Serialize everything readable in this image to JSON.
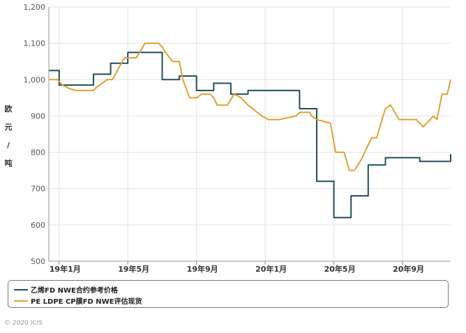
{
  "chart_data": {
    "type": "line",
    "ylabel": "欧元/吨",
    "ylim": [
      500,
      1200
    ],
    "yticks": [
      "500",
      "600",
      "700",
      "800",
      "900",
      "1,000",
      "1,100",
      "1,200"
    ],
    "ytick_values": [
      500,
      600,
      700,
      800,
      900,
      1000,
      1100,
      1200
    ],
    "xlim": [
      -0.6,
      22.8
    ],
    "xticks": [
      "19年1月",
      "19年5月",
      "19年9月",
      "20年1月",
      "20年5月",
      "20年9月"
    ],
    "xtick_values": [
      0,
      4,
      8,
      12,
      16,
      20
    ],
    "grid": true,
    "legend_position": "bottom",
    "series": [
      {
        "name": "乙烯FD NWE合约参考价格",
        "color": "#1f4e5a",
        "step": true,
        "x": [
          -0.6,
          0,
          2,
          3,
          4,
          5,
          6,
          7,
          8,
          9,
          10,
          11,
          12,
          13,
          14,
          15,
          16,
          17,
          18,
          19,
          20,
          21,
          22,
          22.8
        ],
        "values": [
          1025,
          985,
          1015,
          1045,
          1075,
          1075,
          1000,
          1010,
          970,
          990,
          960,
          970,
          970,
          970,
          920,
          720,
          620,
          680,
          765,
          785,
          785,
          775,
          775,
          795
        ]
      },
      {
        "name": "PE LDPE CP膜FD NWE评估现货",
        "color": "#e0a030",
        "step": false,
        "x": [
          -0.6,
          -0.1,
          0.2,
          0.6,
          1.0,
          2.0,
          2.2,
          2.8,
          3.1,
          3.8,
          4.0,
          4.5,
          5.0,
          5.5,
          5.8,
          6.0,
          6.2,
          6.6,
          7.0,
          7.2,
          7.6,
          8.0,
          8.3,
          8.8,
          9.0,
          9.2,
          9.6,
          9.8,
          10.2,
          10.6,
          11.0,
          11.8,
          12.2,
          12.6,
          12.8,
          13.8,
          14.0,
          14.3,
          14.6,
          14.7,
          15.0,
          15.8,
          16.1,
          16.6,
          16.9,
          17.2,
          17.6,
          18.0,
          18.2,
          18.5,
          18.8,
          19.0,
          19.3,
          19.8,
          20.2,
          20.8,
          21.2,
          21.8,
          22.0,
          22.3,
          22.6,
          22.8
        ],
        "values": [
          1000,
          1000,
          985,
          975,
          970,
          970,
          980,
          1000,
          1000,
          1060,
          1060,
          1060,
          1100,
          1100,
          1100,
          1090,
          1075,
          1050,
          1050,
          1000,
          950,
          950,
          960,
          960,
          950,
          930,
          930,
          930,
          960,
          950,
          930,
          900,
          890,
          890,
          890,
          900,
          910,
          910,
          910,
          900,
          890,
          880,
          800,
          800,
          750,
          750,
          780,
          820,
          840,
          840,
          890,
          920,
          930,
          890,
          890,
          890,
          870,
          900,
          890,
          960,
          960,
          1000
        ]
      }
    ]
  },
  "copyright": "© 2020 ICIS"
}
